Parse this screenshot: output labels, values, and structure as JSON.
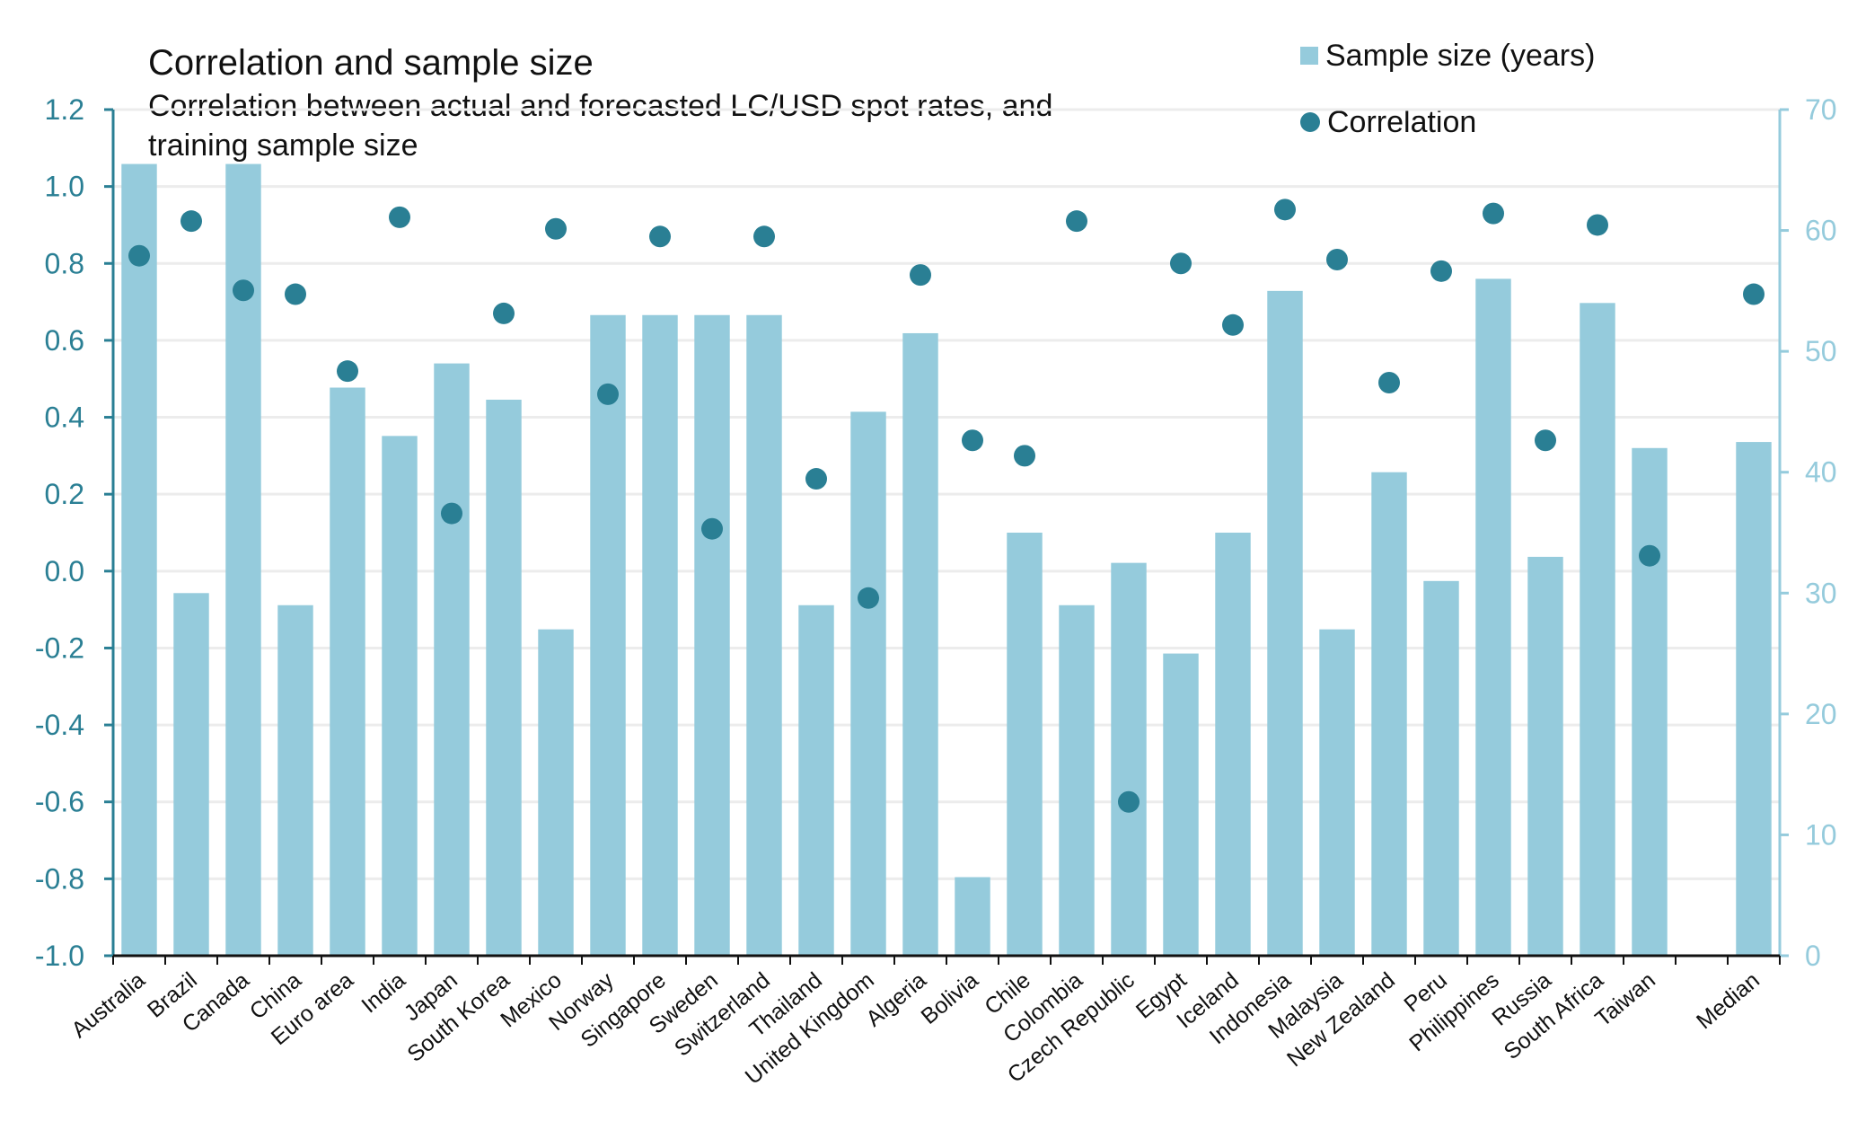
{
  "chart_data": {
    "type": "bar",
    "title": "Correlation and sample size",
    "subtitle": "Correlation between actual and forecasted LC/USD spot rates, and training sample size",
    "categories": [
      "Australia",
      "Brazil",
      "Canada",
      "China",
      "Euro area",
      "India",
      "Japan",
      "South Korea",
      "Mexico",
      "Norway",
      "Singapore",
      "Sweden",
      "Switzerland",
      "Thailand",
      "United Kingdom",
      "Algeria",
      "Bolivia",
      "Chile",
      "Colombia",
      "Czech Republic",
      "Egypt",
      "Iceland",
      "Indonesia",
      "Malaysia",
      "New Zealand",
      "Peru",
      "Philippines",
      "Russia",
      "South Africa",
      "Taiwan",
      "",
      "Median"
    ],
    "series": [
      {
        "name": "Sample size (years)",
        "type": "bar",
        "axis": "right",
        "color": "#95cbdc",
        "values": [
          65.5,
          30,
          65.5,
          29,
          47,
          43,
          49,
          46,
          27,
          53,
          53,
          53,
          53,
          29,
          45,
          51.5,
          6.5,
          35,
          29,
          32.5,
          25,
          35,
          55,
          27,
          40,
          31,
          56,
          33,
          54,
          42,
          null,
          42.5
        ]
      },
      {
        "name": "Correlation",
        "type": "scatter",
        "axis": "left",
        "color": "#2a7f94",
        "values": [
          0.82,
          0.91,
          0.73,
          0.72,
          0.52,
          0.92,
          0.15,
          0.67,
          0.89,
          0.46,
          0.87,
          0.11,
          0.87,
          0.24,
          -0.07,
          0.77,
          0.34,
          0.3,
          0.91,
          -0.6,
          0.8,
          0.64,
          0.94,
          0.81,
          0.49,
          0.78,
          0.93,
          0.34,
          0.9,
          0.04,
          null,
          0.72
        ]
      }
    ],
    "y_left": {
      "min": -1.0,
      "max": 1.2,
      "ticks": [
        "1.2",
        "1.0",
        "0.8",
        "0.6",
        "0.4",
        "0.2",
        "0.0",
        "-0.2",
        "-0.4",
        "-0.6",
        "-0.8",
        "-1.0"
      ],
      "color": "#2a7f94"
    },
    "y_right": {
      "min": 0,
      "max": 70,
      "ticks": [
        "70",
        "60",
        "50",
        "40",
        "30",
        "20",
        "10",
        "0"
      ],
      "color": "#95cbdc"
    },
    "grid": true,
    "legend_position": "top-right",
    "legend": [
      {
        "label": "Sample size (years)",
        "marker": "square"
      },
      {
        "label": "Correlation",
        "marker": "circle"
      }
    ]
  }
}
